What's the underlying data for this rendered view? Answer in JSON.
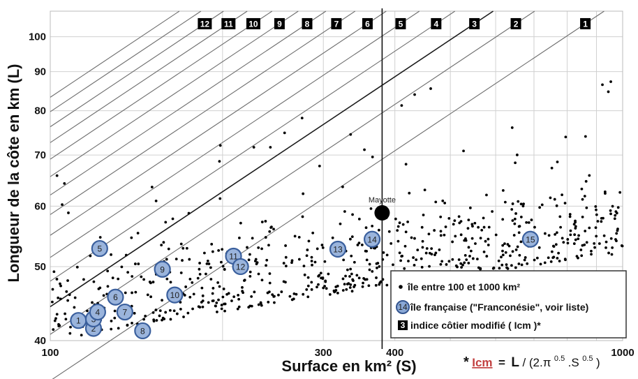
{
  "chart_data": {
    "type": "scatter",
    "xlabel": "Surface en km² (S)",
    "ylabel": "Longueur de la côte en km (L)",
    "x_scale": "log",
    "y_scale": "log",
    "xlim": [
      100,
      1000
    ],
    "ylim": [
      40,
      108
    ],
    "x_ticks": [
      "100",
      "300",
      "400",
      "1000"
    ],
    "y_ticks": [
      "40",
      "50",
      "60",
      "70",
      "80",
      "90",
      "100"
    ],
    "x_tick_values": [
      100,
      300,
      400,
      1000
    ],
    "y_tick_values": [
      40,
      50,
      60,
      70,
      80,
      90,
      100
    ],
    "grid": true,
    "x_grid_values": [
      100,
      200,
      300,
      400,
      500,
      600,
      700,
      800,
      900,
      1000
    ],
    "y_grid_values": [
      40,
      50,
      60,
      70,
      80,
      90,
      100
    ],
    "reference_line_x": 380,
    "highlight": {
      "label": "Mayotte",
      "x": 380,
      "y": 58.8
    },
    "iso_lines": {
      "badges": [
        "1",
        "2",
        "3",
        "4",
        "5",
        "6",
        "7",
        "8",
        "9",
        "10",
        "11",
        "12"
      ],
      "lcm_values": [
        1.0,
        1.15,
        1.25,
        1.35,
        1.45,
        1.55,
        1.65,
        1.75,
        1.85,
        1.95,
        2.05,
        2.15,
        2.25,
        2.35
      ]
    },
    "french_islands": {
      "labels": [
        "1",
        "2",
        "3",
        "4",
        "5",
        "6",
        "7",
        "8",
        "9",
        "10",
        "11",
        "12",
        "13",
        "14",
        "15"
      ],
      "points": [
        [
          112,
          42.5
        ],
        [
          119,
          41.5
        ],
        [
          119,
          42.7
        ],
        [
          121,
          43.6
        ],
        [
          122,
          52.8
        ],
        [
          130,
          45.6
        ],
        [
          135,
          43.6
        ],
        [
          145,
          41.2
        ],
        [
          157,
          49.6
        ],
        [
          165,
          45.9
        ],
        [
          209,
          51.6
        ],
        [
          215,
          50.0
        ],
        [
          318,
          52.7
        ],
        [
          365,
          54.3
        ],
        [
          690,
          54.3
        ]
      ]
    },
    "legend": {
      "position": "bottom-right",
      "entries": [
        "île entre 100 et 1000 km²",
        "île française (\"Franconésie\", voir liste)",
        "indice côtier modifié ( Icm )*"
      ],
      "sample_circle_label": "14",
      "sample_badge_label": "3"
    },
    "formula": {
      "prefix": "*",
      "lhs": "Icm",
      "equals": "=",
      "L": "L",
      "rhs": "/ (2.π",
      "exp1": "0.5",
      "mid": ".S",
      "exp2": "0.5",
      "end": ")"
    }
  }
}
